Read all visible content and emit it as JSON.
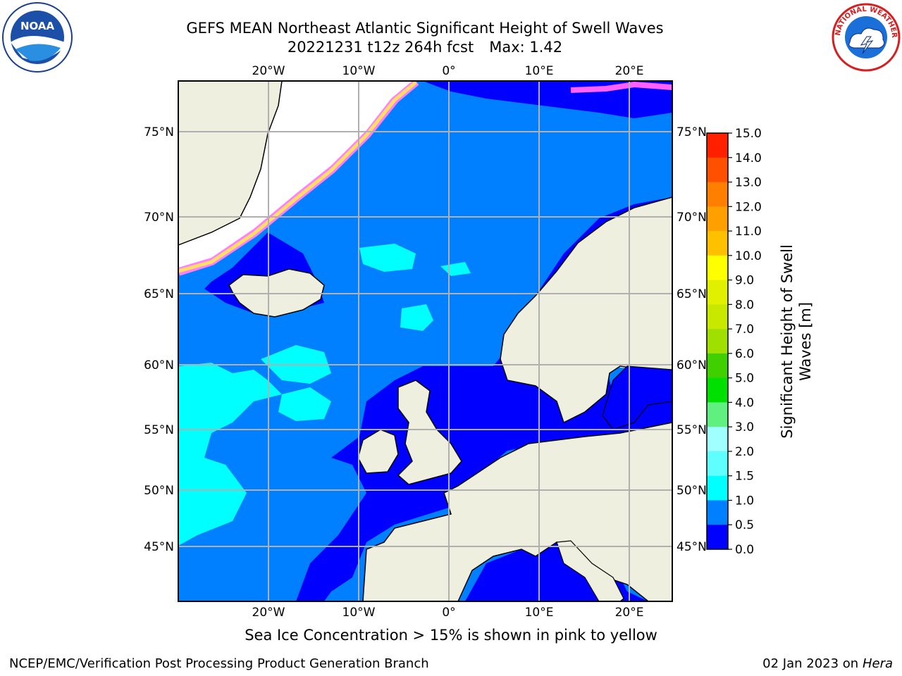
{
  "title": {
    "line1": "GEFS MEAN Northeast Atlantic Significant Height of Swell Waves",
    "line2_run": "20221231 t12z 264h fcst",
    "line2_max": "Max: 1.42"
  },
  "map": {
    "lon_ticks": [
      "20°W",
      "10°W",
      "0°",
      "10°E",
      "20°E"
    ],
    "lat_ticks_left": [
      "75°N",
      "70°N",
      "65°N",
      "60°N",
      "55°N",
      "50°N",
      "45°N"
    ],
    "lat_ticks_right": [
      "75°N",
      "70°N",
      "65°N",
      "60°N",
      "55°N",
      "50°N",
      "45°N"
    ],
    "colors": {
      "land": "#efefdf",
      "low": "#0000ff",
      "mid": "#0080ff",
      "high": "#00ffff",
      "grid": "#b0b0b0"
    }
  },
  "colorbar": {
    "label_line1": "Significant Height of Swell",
    "label_line2": "Waves [m]",
    "ticks": [
      "15.0",
      "14.0",
      "13.0",
      "12.0",
      "11.0",
      "10.0",
      "9.0",
      "8.0",
      "7.0",
      "6.0",
      "5.0",
      "4.0",
      "3.0",
      "2.0",
      "1.5",
      "1.0",
      "0.5",
      "0.0"
    ],
    "colors": [
      "#ff0000",
      "#ff2000",
      "#ff5000",
      "#ff8000",
      "#ffa000",
      "#ffc000",
      "#ffff00",
      "#e0f000",
      "#c8e800",
      "#a0e000",
      "#40d000",
      "#00e000",
      "#60f080",
      "#a0ffff",
      "#60ffff",
      "#00ffff",
      "#0080ff",
      "#0000ff"
    ]
  },
  "note": "Sea Ice Concentration > 15% is shown in pink to yellow",
  "footer": {
    "left": "NCEP/EMC/Verification Post Processing Product Generation Branch",
    "date": "02 Jan 2023 on",
    "machine": "Hera"
  }
}
